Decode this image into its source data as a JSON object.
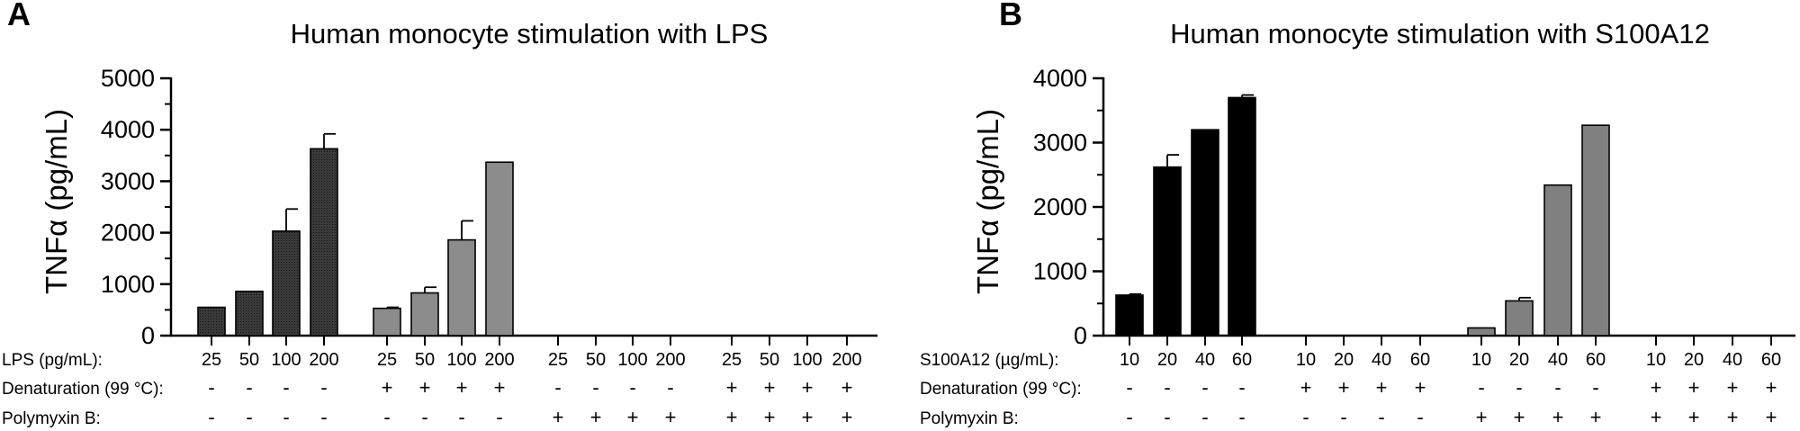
{
  "chart_data": [
    {
      "panel_label": "A",
      "type": "bar",
      "title": "Human monocyte stimulation with LPS",
      "ylabel": "TNFα (pg/mL)",
      "ylim": [
        0,
        5000
      ],
      "yticks": [
        "0",
        "1000",
        "2000",
        "3000",
        "4000",
        "5000"
      ],
      "grid": false,
      "row_labels": [
        "LPS (pg/mL):",
        "Denaturation (99 °C):",
        "Polymyxin B:"
      ],
      "conc_row": [
        "25",
        "50",
        "100",
        "200",
        "25",
        "50",
        "100",
        "200",
        "25",
        "50",
        "100",
        "200",
        "25",
        "50",
        "100",
        "200"
      ],
      "denat_row": [
        "-",
        "-",
        "-",
        "-",
        "+",
        "+",
        "+",
        "+",
        "-",
        "-",
        "-",
        "-",
        "+",
        "+",
        "+",
        "+"
      ],
      "polymyxin_row": [
        "-",
        "-",
        "-",
        "-",
        "-",
        "-",
        "-",
        "-",
        "+",
        "+",
        "+",
        "+",
        "+",
        "+",
        "+",
        "+"
      ],
      "series": [
        {
          "name": "LPS",
          "fill": "#333333",
          "values": [
            550,
            860,
            2030,
            3630
          ],
          "errors": [
            0,
            0,
            430,
            290
          ]
        },
        {
          "name": "LPS + denaturation",
          "fill": "#8c8c8c",
          "values": [
            530,
            830,
            1860,
            3370
          ],
          "errors": [
            20,
            110,
            370,
            0
          ]
        },
        {
          "name": "LPS + polymyxin B",
          "fill": "#333333",
          "values": [
            0,
            0,
            0,
            0
          ],
          "errors": [
            0,
            0,
            0,
            0
          ]
        },
        {
          "name": "LPS + denaturation + polymyxin B",
          "fill": "#8c8c8c",
          "values": [
            0,
            0,
            0,
            0
          ],
          "errors": [
            0,
            0,
            0,
            0
          ]
        }
      ]
    },
    {
      "panel_label": "B",
      "type": "bar",
      "title": "Human monocyte stimulation with S100A12",
      "ylabel": "TNFα (pg/mL)",
      "ylim": [
        0,
        4000
      ],
      "yticks": [
        "0",
        "1000",
        "2000",
        "3000",
        "4000"
      ],
      "grid": false,
      "row_labels": [
        "S100A12 (µg/mL):",
        "Denaturation (99 °C):",
        "Polymyxin B:"
      ],
      "conc_row": [
        "10",
        "20",
        "40",
        "60",
        "10",
        "20",
        "40",
        "60",
        "10",
        "20",
        "40",
        "60",
        "10",
        "20",
        "40",
        "60"
      ],
      "denat_row": [
        "-",
        "-",
        "-",
        "-",
        "+",
        "+",
        "+",
        "+",
        "-",
        "-",
        "-",
        "-",
        "+",
        "+",
        "+",
        "+"
      ],
      "polymyxin_row": [
        "-",
        "-",
        "-",
        "-",
        "-",
        "-",
        "-",
        "-",
        "+",
        "+",
        "+",
        "+",
        "+",
        "+",
        "+",
        "+"
      ],
      "series": [
        {
          "name": "S100A12",
          "fill": "#000000",
          "values": [
            630,
            2620,
            3200,
            3700
          ],
          "errors": [
            15,
            190,
            0,
            40
          ]
        },
        {
          "name": "S100A12 + denaturation",
          "fill": "#000000",
          "values": [
            0,
            0,
            0,
            0
          ],
          "errors": [
            0,
            0,
            0,
            0
          ]
        },
        {
          "name": "S100A12 + polymyxin B",
          "fill": "#808080",
          "values": [
            120,
            540,
            2340,
            3270
          ],
          "errors": [
            0,
            50,
            0,
            0
          ]
        },
        {
          "name": "S100A12 + denaturation + polymyxin B",
          "fill": "#808080",
          "values": [
            0,
            0,
            0,
            5
          ],
          "errors": [
            0,
            0,
            0,
            0
          ]
        }
      ]
    }
  ]
}
